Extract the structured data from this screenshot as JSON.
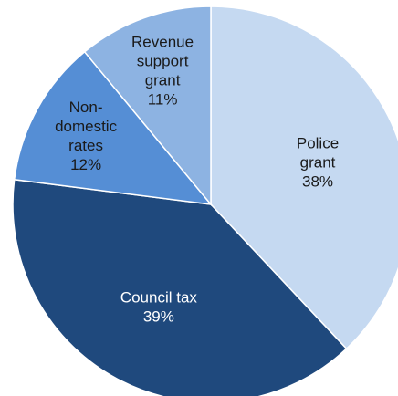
{
  "chart_data": {
    "type": "pie",
    "title": "",
    "start": "12 o'clock",
    "direction": "clockwise",
    "slices": [
      {
        "label_lines": [
          "Police",
          "grant"
        ],
        "percent_label": "38%",
        "value": 38,
        "color": "#c5d9f1",
        "text_color": "#1a1a1a"
      },
      {
        "label_lines": [
          "Council tax"
        ],
        "percent_label": "39%",
        "value": 39,
        "color": "#1f497d",
        "text_color": "#ffffff"
      },
      {
        "label_lines": [
          "Non-",
          "domestic",
          "rates"
        ],
        "percent_label": "12%",
        "value": 12,
        "color": "#558ed5",
        "text_color": "#1a1a1a"
      },
      {
        "label_lines": [
          "Revenue",
          "support",
          "grant"
        ],
        "percent_label": "11%",
        "value": 11,
        "color": "#8db3e2",
        "text_color": "#1a1a1a"
      }
    ]
  }
}
